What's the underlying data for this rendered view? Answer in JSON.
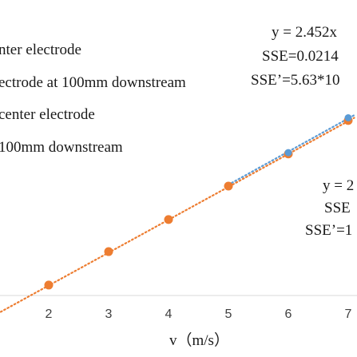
{
  "chart_data": {
    "type": "scatter",
    "xlabel": "v（m/s）",
    "x_ticks": [
      "2",
      "3",
      "4",
      "5",
      "6",
      "7"
    ],
    "xlim": [
      1.2,
      7.1
    ],
    "ylim": [
      0.0,
      20.0
    ],
    "legend": [
      "nter electrode",
      "ectrode at 100mm downstream",
      "center electrode",
      "100mm downstream"
    ],
    "series": [
      {
        "color": "#ed7d31",
        "trendline": {
          "style": "dotted",
          "color": "#ed7d31",
          "x": [
            1.2,
            7.1
          ],
          "y": [
            2.9,
            17.4
          ]
        },
        "x": [
          2,
          3,
          4,
          5,
          6,
          7
        ],
        "y": [
          4.9,
          7.4,
          9.8,
          12.3,
          14.7,
          17.2
        ]
      },
      {
        "color": "#5b9bd5",
        "trendline": {
          "style": "dotted",
          "color": "#5b9bd5",
          "x": [
            5.0,
            7.1
          ],
          "y": [
            12.4,
            17.6
          ]
        },
        "x": [
          6,
          7
        ],
        "y": [
          14.8,
          17.4
        ]
      }
    ],
    "annotations": [
      {
        "lines": [
          "y = 2.452x",
          "SSE=0.0214",
          "SSE’=5.63*10"
        ]
      },
      {
        "lines": [
          "y = 2",
          "SSE",
          "SSE’=1"
        ]
      }
    ]
  }
}
